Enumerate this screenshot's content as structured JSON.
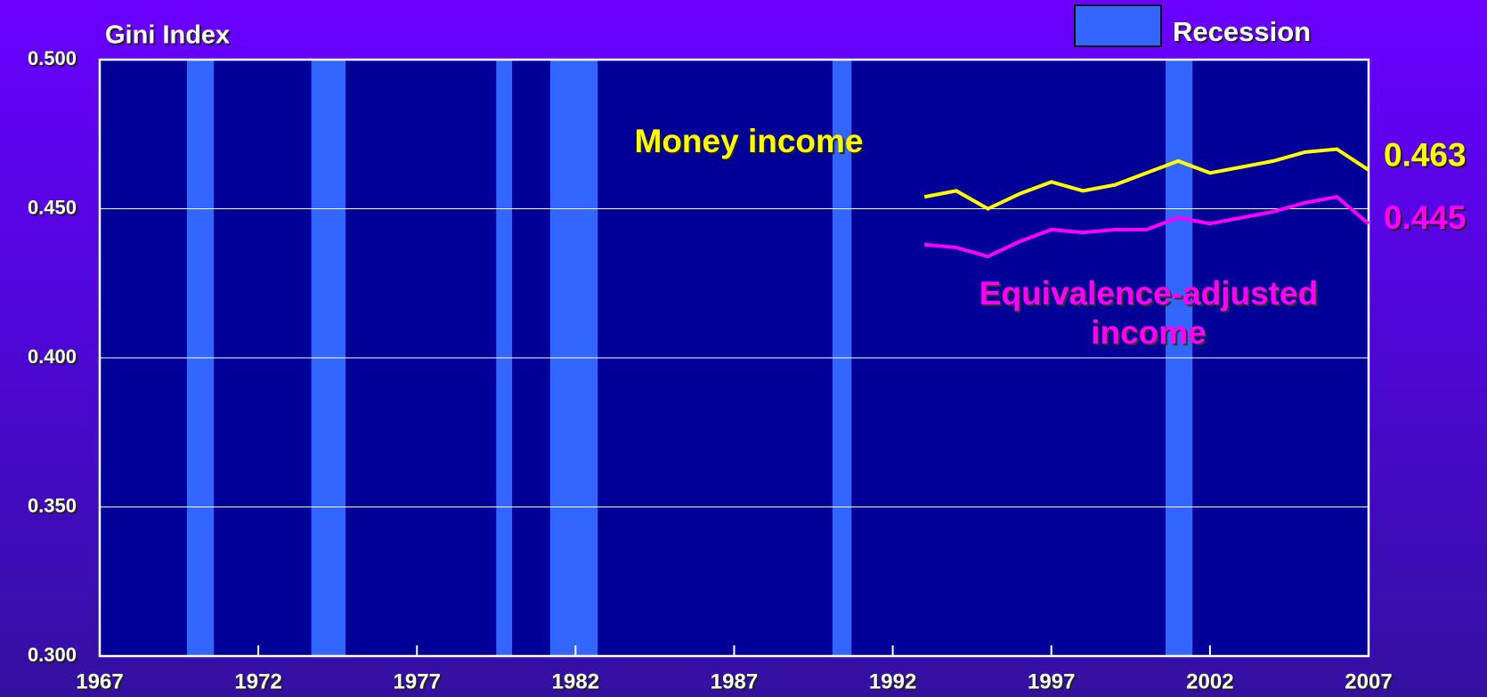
{
  "chart_data": {
    "type": "line",
    "y_label": "Gini Index",
    "x": [
      1993,
      1994,
      1995,
      1996,
      1997,
      1998,
      1999,
      2000,
      2001,
      2002,
      2003,
      2004,
      2005,
      2006,
      2007
    ],
    "series": [
      {
        "name": "Money income",
        "color": "#ffff00",
        "values": [
          0.454,
          0.456,
          0.45,
          0.455,
          0.459,
          0.456,
          0.458,
          0.462,
          0.466,
          0.462,
          0.464,
          0.466,
          0.469,
          0.47,
          0.463
        ],
        "value_labels": [
          null,
          null,
          null,
          null,
          null,
          null,
          null,
          null,
          null,
          null,
          null,
          null,
          null,
          null,
          "0.463"
        ]
      },
      {
        "name": "Equivalence-adjusted income",
        "color": "#ff00ff",
        "values": [
          0.438,
          0.437,
          0.434,
          0.439,
          0.443,
          0.442,
          0.443,
          0.443,
          0.447,
          0.445,
          0.447,
          0.449,
          0.452,
          0.454,
          0.445
        ],
        "value_labels": [
          null,
          null,
          null,
          null,
          null,
          null,
          null,
          null,
          null,
          null,
          null,
          null,
          null,
          null,
          "0.445"
        ]
      }
    ],
    "recession_label": "Recession",
    "recession_color": "#3366ff",
    "recessions": [
      [
        1969.75,
        1970.6
      ],
      [
        1973.67,
        1974.75
      ],
      [
        1979.5,
        1980.0
      ],
      [
        1981.2,
        1982.7
      ],
      [
        1990.1,
        1990.7
      ],
      [
        2000.6,
        2001.45
      ]
    ],
    "xlim": [
      1967,
      2007
    ],
    "xticks": [
      1967,
      1972,
      1977,
      1982,
      1987,
      1992,
      1997,
      2002,
      2007
    ],
    "ylim": [
      0.3,
      0.5
    ],
    "yticks": [
      {
        "value": 0.3,
        "label": "0.300"
      },
      {
        "value": 0.35,
        "label": "0.350"
      },
      {
        "value": 0.4,
        "label": "0.400"
      },
      {
        "value": 0.45,
        "label": "0.450"
      },
      {
        "value": 0.5,
        "label": "0.500"
      }
    ],
    "grid": true
  }
}
